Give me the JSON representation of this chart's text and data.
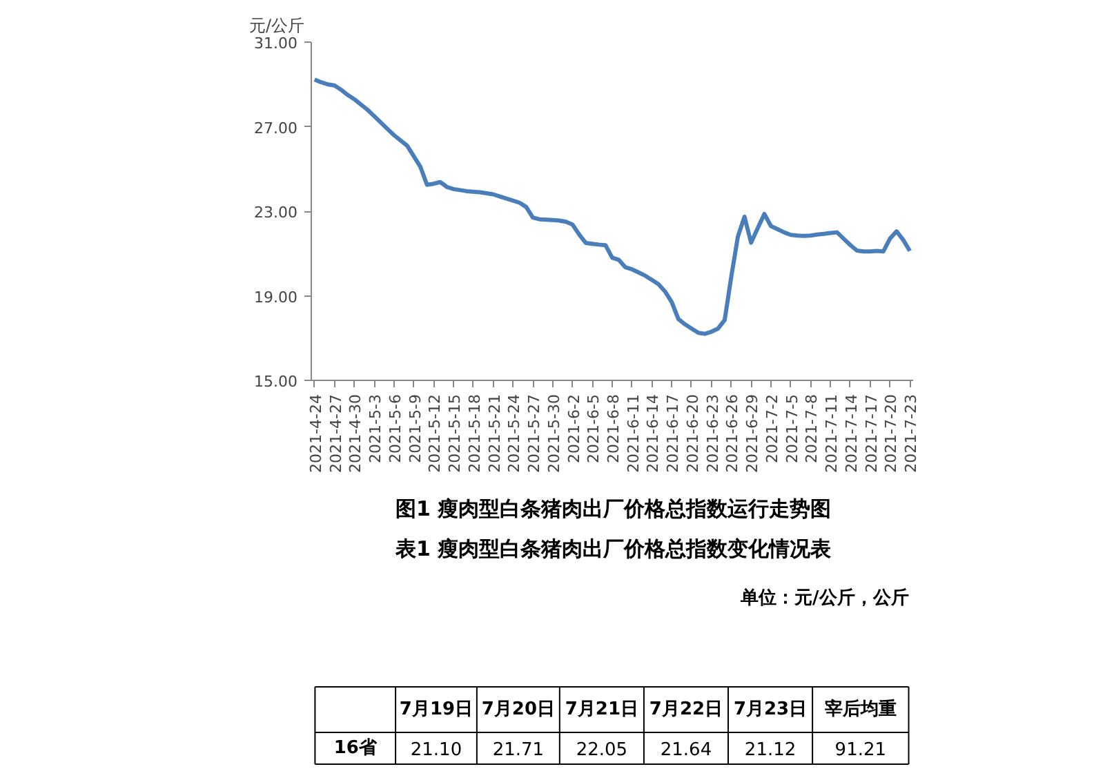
{
  "chart_data": {
    "type": "line",
    "title": "图1 瘦肉型白条猪肉出厂价格总指数运行走势图",
    "ylabel": "元/公斤",
    "categories": [
      "2021-4-24",
      null,
      null,
      "2021-4-27",
      null,
      null,
      "2021-4-30",
      null,
      null,
      "2021-5-3",
      null,
      null,
      "2021-5-6",
      null,
      null,
      "2021-5-9",
      null,
      null,
      "2021-5-12",
      null,
      null,
      "2021-5-15",
      null,
      null,
      "2021-5-18",
      null,
      null,
      "2021-5-21",
      null,
      null,
      "2021-5-24",
      null,
      null,
      "2021-5-27",
      null,
      null,
      "2021-5-30",
      null,
      null,
      "2021-6-2",
      null,
      null,
      "2021-6-5",
      null,
      null,
      "2021-6-8",
      null,
      null,
      "2021-6-11",
      null,
      null,
      "2021-6-14",
      null,
      null,
      "2021-6-17",
      null,
      null,
      "2021-6-20",
      null,
      null,
      "2021-6-23",
      null,
      null,
      "2021-6-26",
      null,
      null,
      "2021-6-29",
      null,
      null,
      "2021-7-2",
      null,
      null,
      "2021-7-5",
      null,
      null,
      "2021-7-8",
      null,
      null,
      "2021-7-11",
      null,
      null,
      "2021-7-14",
      null,
      null,
      "2021-7-17",
      null,
      null,
      "2021-7-20",
      null,
      null,
      "2021-7-23"
    ],
    "series": [
      {
        "color": "#4a7ebb",
        "values": [
          29.23,
          29.1,
          29.0,
          28.95,
          28.75,
          28.5,
          28.3,
          28.05,
          27.8,
          27.5,
          27.2,
          26.9,
          26.6,
          26.35,
          26.1,
          25.6,
          25.1,
          24.25,
          24.3,
          24.38,
          24.15,
          24.05,
          24.0,
          23.95,
          23.92,
          23.9,
          23.85,
          23.8,
          23.7,
          23.6,
          23.5,
          23.4,
          23.2,
          22.7,
          22.62,
          22.6,
          22.58,
          22.56,
          22.5,
          22.37,
          21.9,
          21.5,
          21.46,
          21.42,
          21.39,
          20.8,
          20.7,
          20.35,
          20.25,
          20.1,
          19.95,
          19.75,
          19.55,
          19.2,
          18.7,
          17.9,
          17.65,
          17.45,
          17.25,
          17.2,
          17.3,
          17.45,
          17.85,
          19.9,
          21.8,
          22.74,
          21.51,
          22.2,
          22.87,
          22.3,
          22.15,
          22.0,
          21.88,
          21.85,
          21.83,
          21.85,
          21.9,
          21.93,
          21.97,
          22.0,
          21.7,
          21.4,
          21.14,
          21.1,
          21.1,
          21.12,
          21.1,
          21.71,
          22.05,
          21.64,
          21.12
        ]
      }
    ],
    "ylim": [
      15,
      31
    ],
    "yticks": [
      {
        "value": 15,
        "label": "15.00"
      },
      {
        "value": 19,
        "label": "19.00"
      },
      {
        "value": 23,
        "label": "23.00"
      },
      {
        "value": 27,
        "label": "27.00"
      },
      {
        "value": 31,
        "label": "31.00"
      }
    ],
    "grid": false,
    "marker": "none",
    "line_style": "solid",
    "annotations": [
      "表1 瘦肉型白条猪肉出厂价格总指数变化情况表",
      "单位：元/公斤，公斤",
      "7月19日",
      "7月20日",
      "7月21日",
      "7月22日",
      "7月23日",
      "宰后均重",
      "16省",
      "21.10",
      "21.71",
      "22.05",
      "21.64",
      "21.12",
      "91.21"
    ]
  }
}
